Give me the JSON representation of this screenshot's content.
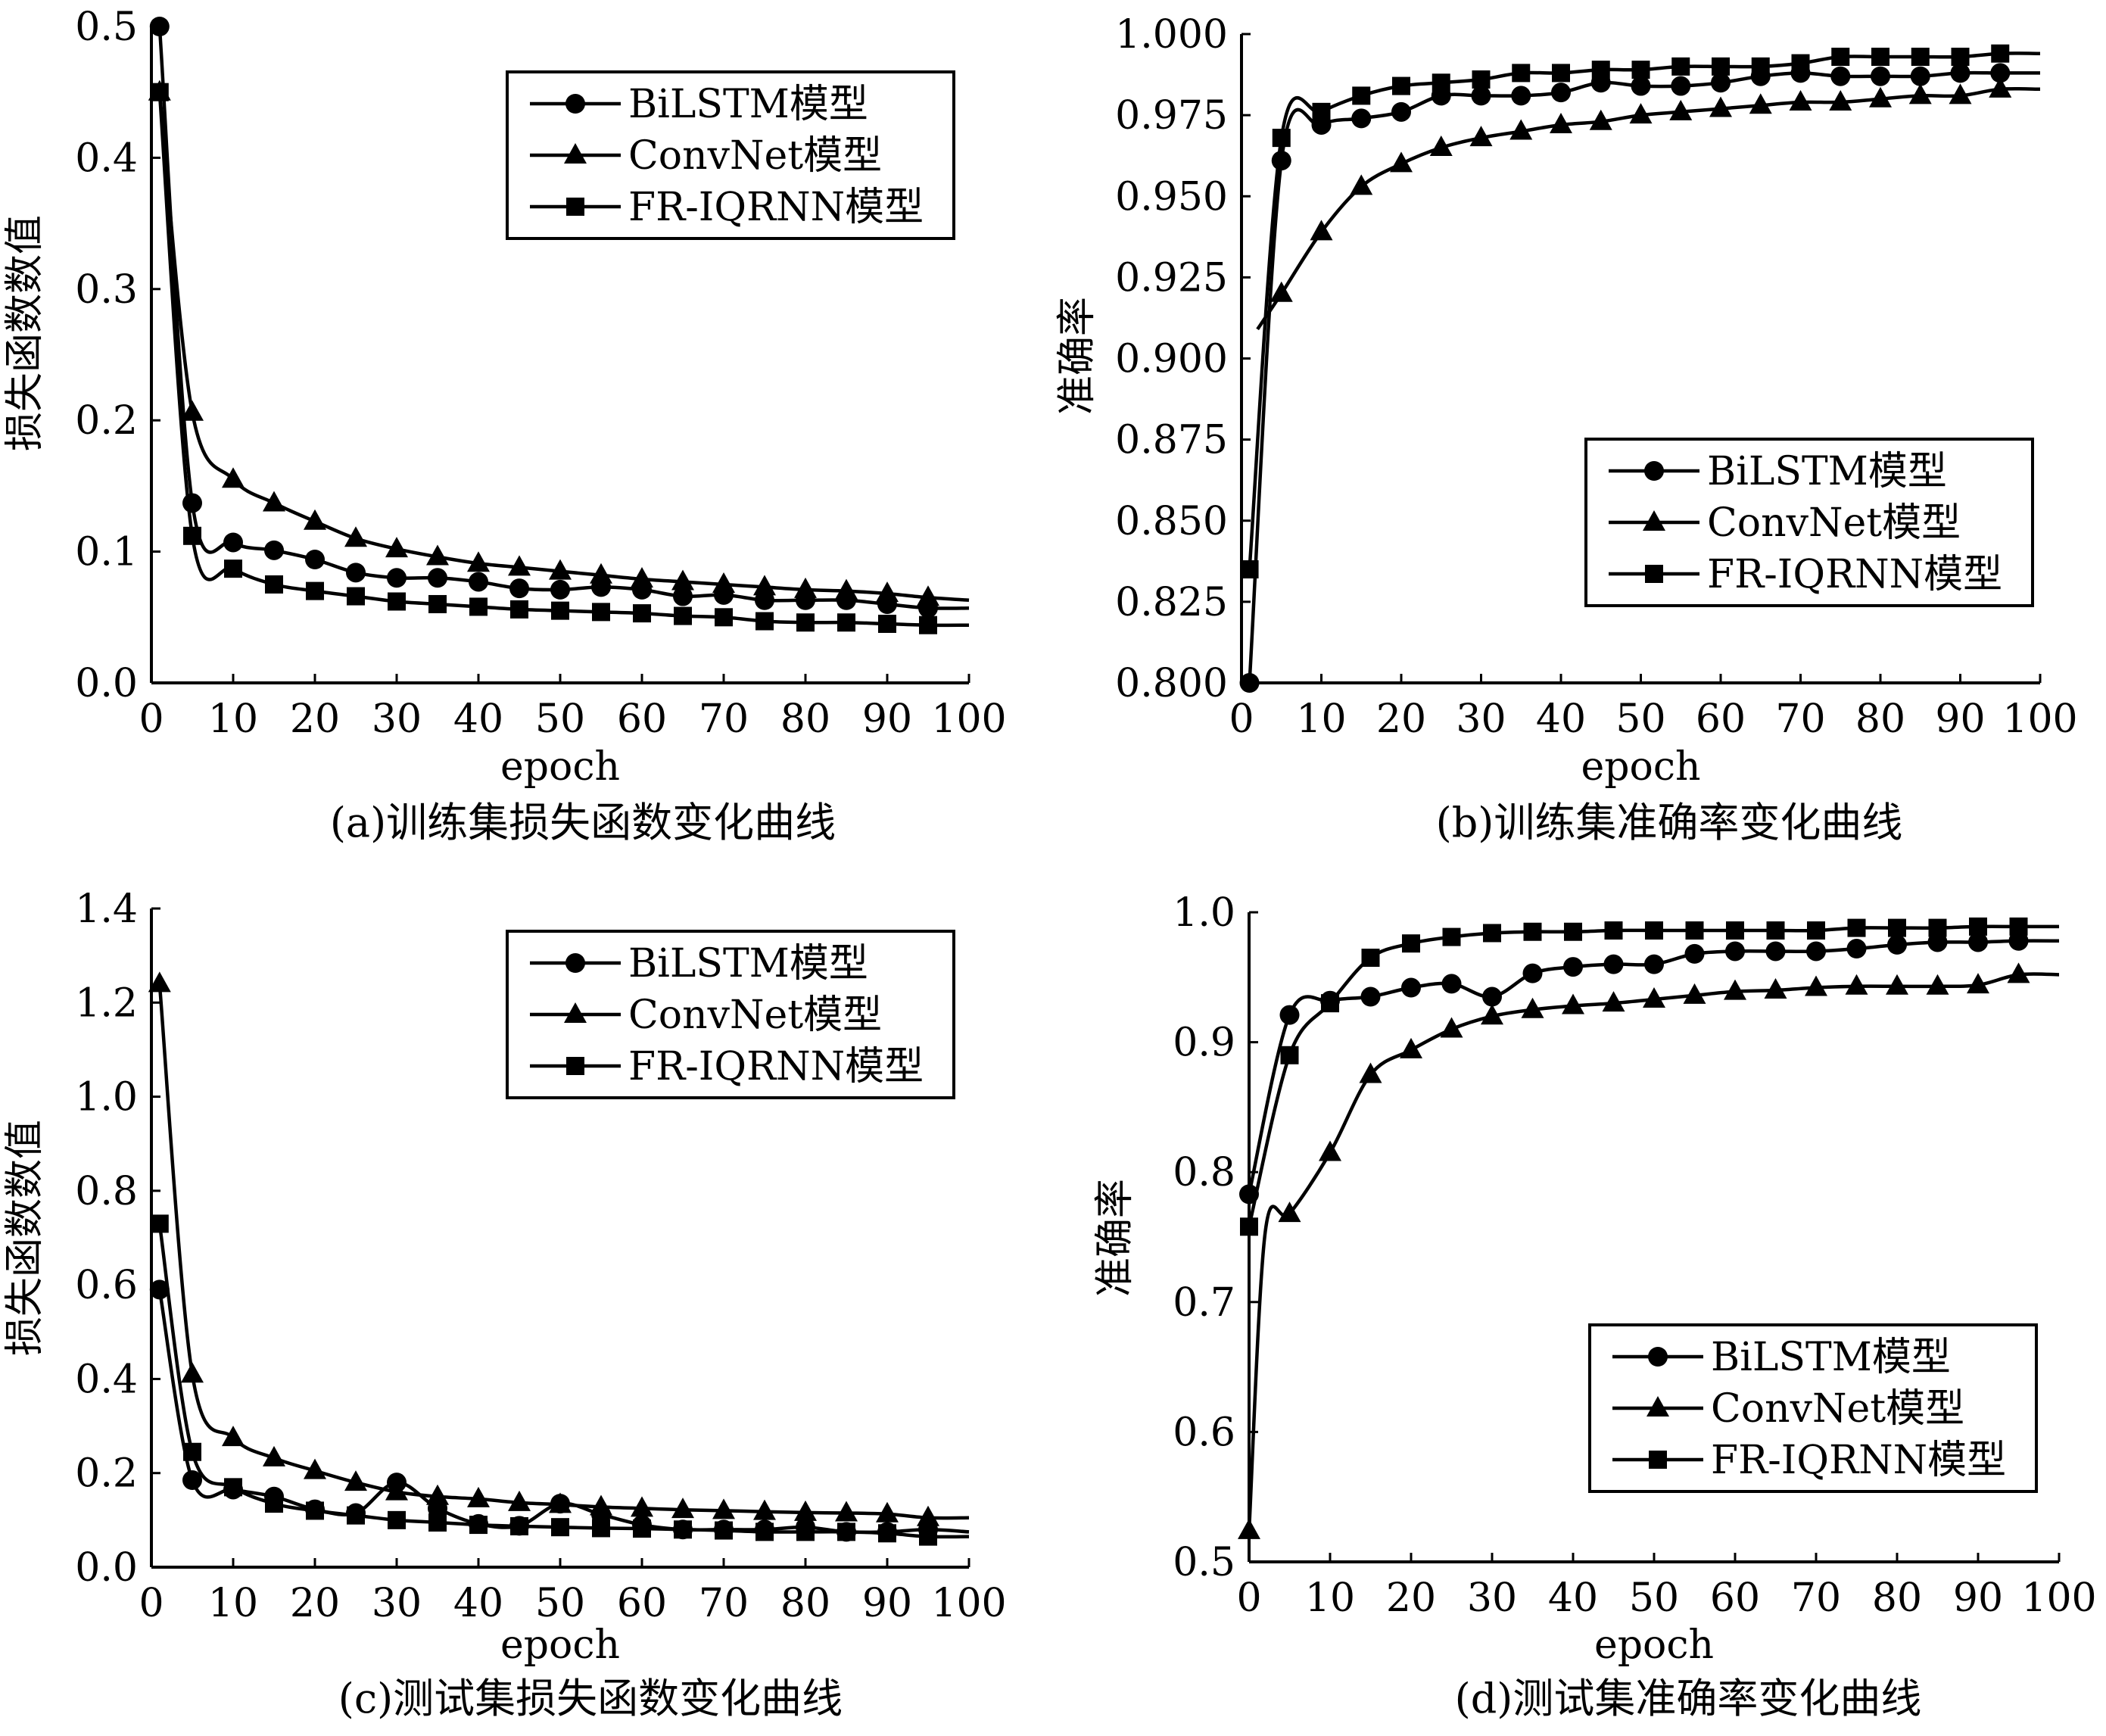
{
  "chart_data": [
    {
      "type": "line",
      "caption": "(a)训练集损失函数变化曲线",
      "xlabel": "epoch",
      "ylabel": "损失函数数值",
      "xlim": [
        0,
        100
      ],
      "ylim": [
        0,
        0.5
      ],
      "xticks": [
        "0",
        "10",
        "20",
        "30",
        "40",
        "50",
        "60",
        "70",
        "80",
        "90",
        "100"
      ],
      "yticks": [
        "0.0",
        "0.1",
        "0.2",
        "0.3",
        "0.4",
        "0.5"
      ],
      "legend_position": "top-right",
      "series": [
        {
          "name": "BiLSTM模型",
          "marker": "circle",
          "x": [
            1,
            5,
            10,
            15,
            20,
            25,
            30,
            35,
            40,
            45,
            50,
            55,
            60,
            65,
            70,
            75,
            80,
            85,
            90,
            95,
            100
          ],
          "y": [
            0.5,
            0.137,
            0.107,
            0.101,
            0.094,
            0.084,
            0.08,
            0.08,
            0.077,
            0.072,
            0.071,
            0.073,
            0.071,
            0.066,
            0.067,
            0.063,
            0.063,
            0.063,
            0.06,
            0.057,
            0.057
          ]
        },
        {
          "name": "ConvNet模型",
          "marker": "triangle",
          "x": [
            1,
            5,
            10,
            15,
            20,
            25,
            30,
            35,
            40,
            45,
            50,
            55,
            60,
            65,
            70,
            75,
            80,
            85,
            90,
            95,
            100
          ],
          "y": [
            0.45,
            0.206,
            0.155,
            0.137,
            0.123,
            0.11,
            0.102,
            0.096,
            0.091,
            0.088,
            0.085,
            0.082,
            0.079,
            0.077,
            0.075,
            0.073,
            0.071,
            0.07,
            0.068,
            0.065,
            0.063
          ]
        },
        {
          "name": "FR-IQRNN模型",
          "marker": "square",
          "x": [
            1,
            5,
            10,
            15,
            20,
            25,
            30,
            35,
            40,
            45,
            50,
            55,
            60,
            65,
            70,
            75,
            80,
            85,
            90,
            95,
            100
          ],
          "y": [
            0.45,
            0.112,
            0.087,
            0.075,
            0.07,
            0.066,
            0.062,
            0.06,
            0.058,
            0.056,
            0.055,
            0.054,
            0.053,
            0.051,
            0.05,
            0.047,
            0.046,
            0.046,
            0.045,
            0.044,
            0.044
          ]
        }
      ]
    },
    {
      "type": "line",
      "caption": "(b)训练集准确率变化曲线",
      "xlabel": "epoch",
      "ylabel": "准确率",
      "xlim": [
        0,
        100
      ],
      "ylim": [
        0.8,
        1.0
      ],
      "xticks": [
        "0",
        "10",
        "20",
        "30",
        "40",
        "50",
        "60",
        "70",
        "80",
        "90",
        "100"
      ],
      "yticks": [
        "0.800",
        "0.825",
        "0.850",
        "0.875",
        "0.900",
        "0.925",
        "0.950",
        "0.975",
        "1.000"
      ],
      "legend_position": "center-right",
      "series": [
        {
          "name": "BiLSTM模型",
          "marker": "circle",
          "x": [
            1,
            5,
            10,
            15,
            20,
            25,
            30,
            35,
            40,
            45,
            50,
            55,
            60,
            65,
            70,
            75,
            80,
            85,
            90,
            95,
            100
          ],
          "y": [
            0.8,
            0.961,
            0.972,
            0.974,
            0.976,
            0.981,
            0.981,
            0.981,
            0.982,
            0.985,
            0.984,
            0.984,
            0.985,
            0.987,
            0.988,
            0.987,
            0.987,
            0.987,
            0.988,
            0.988,
            0.988
          ]
        },
        {
          "name": "ConvNet模型",
          "marker": "triangle",
          "x": [
            2,
            5,
            10,
            15,
            20,
            25,
            30,
            35,
            40,
            45,
            50,
            55,
            60,
            65,
            70,
            75,
            80,
            85,
            90,
            95,
            100
          ],
          "y": [
            0.909,
            0.92,
            0.939,
            0.953,
            0.96,
            0.965,
            0.968,
            0.97,
            0.972,
            0.973,
            0.975,
            0.976,
            0.977,
            0.978,
            0.979,
            0.979,
            0.98,
            0.981,
            0.981,
            0.983,
            0.983
          ]
        },
        {
          "name": "FR-IQRNN模型",
          "marker": "square",
          "x": [
            1,
            5,
            10,
            15,
            20,
            25,
            30,
            35,
            40,
            45,
            50,
            55,
            60,
            65,
            70,
            75,
            80,
            85,
            90,
            95,
            100
          ],
          "y": [
            0.835,
            0.968,
            0.976,
            0.981,
            0.984,
            0.985,
            0.986,
            0.988,
            0.988,
            0.989,
            0.989,
            0.99,
            0.99,
            0.99,
            0.991,
            0.993,
            0.993,
            0.993,
            0.993,
            0.994,
            0.994
          ]
        }
      ]
    },
    {
      "type": "line",
      "caption": "(c)测试集损失函数变化曲线",
      "xlabel": "epoch",
      "ylabel": "损失函数数值",
      "xlim": [
        0,
        100
      ],
      "ylim": [
        0,
        1.4
      ],
      "xticks": [
        "0",
        "10",
        "20",
        "30",
        "40",
        "50",
        "60",
        "70",
        "80",
        "90",
        "100"
      ],
      "yticks": [
        "0.0",
        "0.2",
        "0.4",
        "0.6",
        "0.8",
        "1.0",
        "1.2",
        "1.4"
      ],
      "legend_position": "top-right",
      "series": [
        {
          "name": "BiLSTM模型",
          "marker": "circle",
          "x": [
            1,
            5,
            10,
            15,
            20,
            25,
            30,
            35,
            40,
            45,
            50,
            55,
            60,
            65,
            70,
            75,
            80,
            85,
            90,
            95,
            100
          ],
          "y": [
            0.59,
            0.185,
            0.165,
            0.15,
            0.123,
            0.115,
            0.18,
            0.125,
            0.092,
            0.088,
            0.135,
            0.112,
            0.09,
            0.08,
            0.08,
            0.08,
            0.085,
            0.075,
            0.075,
            0.08,
            0.075
          ]
        },
        {
          "name": "ConvNet模型",
          "marker": "triangle",
          "x": [
            1,
            5,
            10,
            15,
            20,
            25,
            30,
            35,
            40,
            45,
            50,
            55,
            60,
            65,
            70,
            75,
            80,
            85,
            90,
            95,
            100
          ],
          "y": [
            1.24,
            0.41,
            0.275,
            0.232,
            0.205,
            0.18,
            0.16,
            0.15,
            0.145,
            0.137,
            0.133,
            0.128,
            0.125,
            0.122,
            0.12,
            0.118,
            0.116,
            0.115,
            0.113,
            0.105,
            0.105
          ]
        },
        {
          "name": "FR-IQRNN模型",
          "marker": "square",
          "x": [
            1,
            5,
            10,
            15,
            20,
            25,
            30,
            35,
            40,
            45,
            50,
            55,
            60,
            65,
            70,
            75,
            80,
            85,
            90,
            95,
            100
          ],
          "y": [
            0.73,
            0.245,
            0.17,
            0.135,
            0.12,
            0.11,
            0.1,
            0.095,
            0.09,
            0.087,
            0.085,
            0.083,
            0.082,
            0.08,
            0.078,
            0.075,
            0.075,
            0.075,
            0.072,
            0.065,
            0.065
          ]
        }
      ]
    },
    {
      "type": "line",
      "caption": "(d)测试集准确率变化曲线",
      "xlabel": "epoch",
      "ylabel": "准确率",
      "xlim": [
        0,
        100
      ],
      "ylim": [
        0.5,
        1.0
      ],
      "xticks": [
        "0",
        "10",
        "20",
        "30",
        "40",
        "50",
        "60",
        "70",
        "80",
        "90",
        "100"
      ],
      "yticks": [
        "0.5",
        "0.6",
        "0.7",
        "0.8",
        "0.9",
        "1.0"
      ],
      "legend_position": "bottom-right",
      "series": [
        {
          "name": "BiLSTM模型",
          "marker": "circle",
          "x": [
            0,
            5,
            10,
            15,
            20,
            25,
            30,
            35,
            40,
            45,
            50,
            55,
            60,
            65,
            70,
            75,
            80,
            85,
            90,
            95,
            100
          ],
          "y": [
            0.783,
            0.921,
            0.932,
            0.935,
            0.942,
            0.945,
            0.935,
            0.953,
            0.958,
            0.96,
            0.96,
            0.968,
            0.97,
            0.97,
            0.97,
            0.972,
            0.975,
            0.977,
            0.977,
            0.978,
            0.978
          ]
        },
        {
          "name": "ConvNet模型",
          "marker": "triangle",
          "x": [
            0,
            2,
            5,
            10,
            15,
            20,
            25,
            30,
            35,
            40,
            45,
            50,
            55,
            60,
            65,
            70,
            75,
            80,
            85,
            90,
            95,
            100
          ],
          "y": [
            0.524,
            0.754,
            0.768,
            0.815,
            0.875,
            0.894,
            0.91,
            0.92,
            0.925,
            0.928,
            0.93,
            0.933,
            0.936,
            0.939,
            0.94,
            0.942,
            0.943,
            0.943,
            0.943,
            0.944,
            0.952,
            0.952
          ]
        },
        {
          "name": "FR-IQRNN模型",
          "marker": "square",
          "x": [
            0,
            5,
            10,
            15,
            20,
            25,
            30,
            35,
            40,
            45,
            50,
            55,
            60,
            65,
            70,
            75,
            80,
            85,
            90,
            95,
            100
          ],
          "y": [
            0.758,
            0.89,
            0.93,
            0.965,
            0.976,
            0.981,
            0.984,
            0.985,
            0.985,
            0.986,
            0.986,
            0.986,
            0.986,
            0.986,
            0.986,
            0.988,
            0.988,
            0.988,
            0.989,
            0.989,
            0.989
          ]
        }
      ]
    }
  ]
}
